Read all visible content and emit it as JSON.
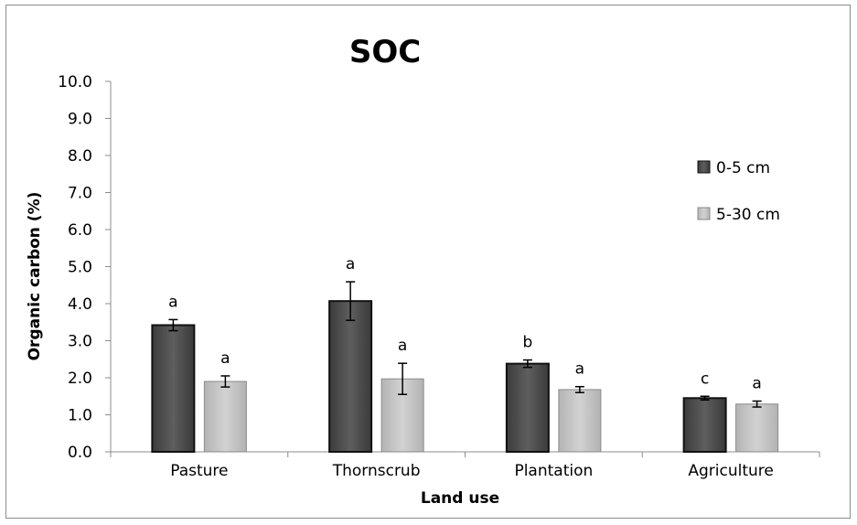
{
  "chart_data": {
    "type": "bar",
    "title": "SOC",
    "xlabel": "Land use",
    "ylabel": "Organic carbon (%)",
    "ylim": [
      0,
      10
    ],
    "y_ticks": [
      "0.0",
      "1.0",
      "2.0",
      "3.0",
      "4.0",
      "5.0",
      "6.0",
      "7.0",
      "8.0",
      "9.0",
      "10.0"
    ],
    "categories": [
      "Pasture",
      "Thornscrub",
      "Plantation",
      "Agriculture"
    ],
    "legend_position": "right",
    "grid": false,
    "series": [
      {
        "name": "0-5 cm",
        "color": "#505050",
        "values": [
          3.42,
          4.07,
          2.38,
          1.45
        ],
        "errors": [
          0.15,
          0.52,
          0.1,
          0.05
        ],
        "labels": [
          "a",
          "a",
          "b",
          "c"
        ]
      },
      {
        "name": "5-30 cm",
        "color": "#c6c6c6",
        "values": [
          1.9,
          1.97,
          1.68,
          1.29
        ],
        "errors": [
          0.15,
          0.42,
          0.08,
          0.08
        ],
        "labels": [
          "a",
          "a",
          "a",
          "a"
        ]
      }
    ]
  }
}
